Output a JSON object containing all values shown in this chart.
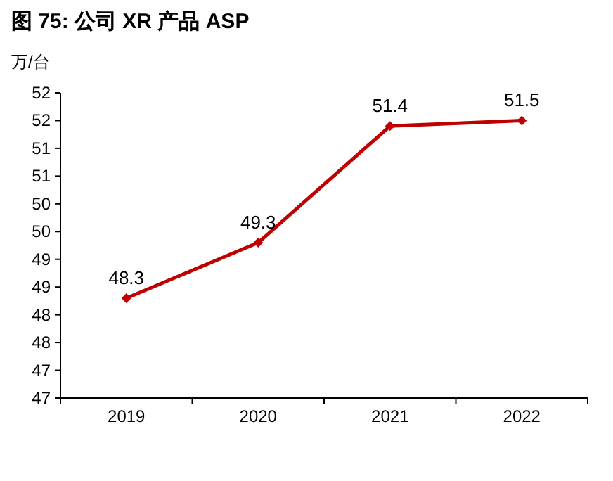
{
  "chart_data": {
    "type": "line",
    "title": "图 75: 公司 XR 产品 ASP",
    "ylabel": "万/台",
    "categories": [
      "2019",
      "2020",
      "2021",
      "2022"
    ],
    "values": [
      48.3,
      49.3,
      51.4,
      51.5
    ],
    "color": "#c00000",
    "marker": "diamond",
    "data_labels": true,
    "ylim": [
      46.5,
      52
    ],
    "yticks": [
      {
        "value": 46.5,
        "label": "47"
      },
      {
        "value": 47,
        "label": "47"
      },
      {
        "value": 47.5,
        "label": "48"
      },
      {
        "value": 48,
        "label": "48"
      },
      {
        "value": 48.5,
        "label": "49"
      },
      {
        "value": 49,
        "label": "49"
      },
      {
        "value": 49.5,
        "label": "50"
      },
      {
        "value": 50,
        "label": "50"
      },
      {
        "value": 50.5,
        "label": "51"
      },
      {
        "value": 51,
        "label": "51"
      },
      {
        "value": 51.5,
        "label": "52"
      },
      {
        "value": 52,
        "label": "52"
      }
    ]
  }
}
